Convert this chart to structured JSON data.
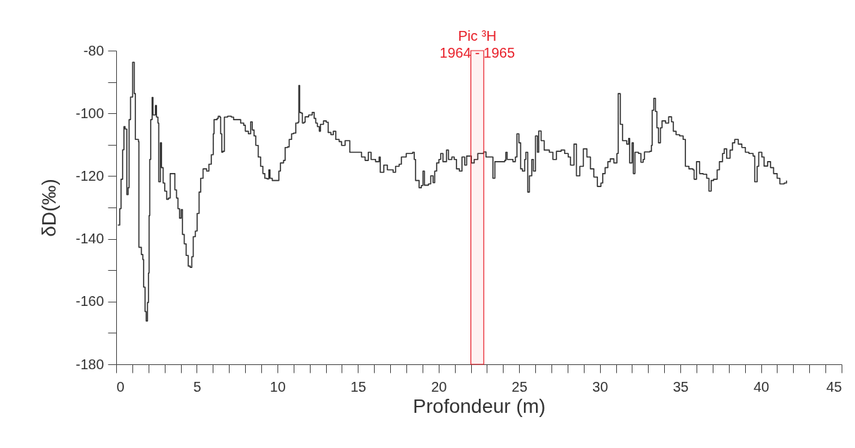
{
  "chart_data": {
    "type": "step",
    "xlabel": "Profondeur (m)",
    "ylabel": "δD(‰)",
    "xlim": [
      0,
      45
    ],
    "ylim": [
      -180,
      -80
    ],
    "xticks": [
      0,
      {
        "value": 1,
        "label": null
      },
      {
        "value": 2,
        "label": null
      },
      {
        "value": 3,
        "label": null
      },
      {
        "value": 4,
        "label": null
      },
      5,
      {
        "value": 6,
        "label": null
      },
      {
        "value": 7,
        "label": null
      },
      {
        "value": 8,
        "label": null
      },
      {
        "value": 9,
        "label": null
      },
      10,
      {
        "value": 11,
        "label": null
      },
      {
        "value": 12,
        "label": null
      },
      {
        "value": 13,
        "label": null
      },
      {
        "value": 14,
        "label": null
      },
      15,
      {
        "value": 16,
        "label": null
      },
      {
        "value": 17,
        "label": null
      },
      {
        "value": 18,
        "label": null
      },
      {
        "value": 19,
        "label": null
      },
      20,
      {
        "value": 21,
        "label": null
      },
      {
        "value": 22,
        "label": null
      },
      {
        "value": 23,
        "label": null
      },
      {
        "value": 24,
        "label": null
      },
      25,
      {
        "value": 26,
        "label": null
      },
      {
        "value": 27,
        "label": null
      },
      {
        "value": 28,
        "label": null
      },
      {
        "value": 29,
        "label": null
      },
      30,
      {
        "value": 31,
        "label": null
      },
      {
        "value": 32,
        "label": null
      },
      {
        "value": 33,
        "label": null
      },
      {
        "value": 34,
        "label": null
      },
      35,
      {
        "value": 36,
        "label": null
      },
      {
        "value": 37,
        "label": null
      },
      {
        "value": 38,
        "label": null
      },
      {
        "value": 39,
        "label": null
      },
      40,
      {
        "value": 41,
        "label": null
      },
      {
        "value": 42,
        "label": null
      },
      {
        "value": 43,
        "label": null
      },
      {
        "value": 44,
        "label": null
      },
      45
    ],
    "yticks": [
      -180,
      {
        "value": -170,
        "label": null
      },
      -160,
      {
        "value": -150,
        "label": null
      },
      -140,
      {
        "value": -130,
        "label": null
      },
      -120,
      {
        "value": -110,
        "label": null
      },
      -100,
      {
        "value": -90,
        "label": null
      },
      -80
    ],
    "grid": false,
    "bands": [
      {
        "axis": "x",
        "from": 22.0,
        "to": 22.8,
        "label": "Pic ³H\n1964 - 1965",
        "color": "#e8202a"
      }
    ],
    "series": [
      {
        "color": "#333333",
        "x": [
          0.1,
          0.22,
          0.3,
          0.4,
          0.48,
          0.55,
          0.66,
          0.74,
          0.8,
          0.89,
          1.02,
          1.12,
          1.19,
          1.38,
          1.41,
          1.56,
          1.65,
          1.7,
          1.79,
          1.86,
          1.94,
          2.0,
          2.04,
          2.08,
          2.14,
          2.23,
          2.28,
          2.43,
          2.5,
          2.59,
          2.64,
          2.74,
          2.81,
          2.91,
          3.01,
          3.13,
          3.24,
          3.35,
          3.57,
          3.64,
          3.74,
          3.83,
          3.93,
          4.03,
          4.11,
          4.22,
          4.34,
          4.47,
          4.59,
          4.69,
          4.78,
          4.91,
          5.02,
          5.14,
          5.24,
          5.39,
          5.61,
          5.75,
          5.9,
          6.02,
          6.07,
          6.26,
          6.33,
          6.43,
          6.48,
          6.55,
          6.62,
          6.71,
          6.91,
          7.14,
          7.28,
          7.5,
          7.72,
          7.91,
          8.01,
          8.2,
          8.34,
          8.44,
          8.55,
          8.66,
          8.81,
          8.96,
          9.1,
          9.22,
          9.36,
          9.47,
          9.54,
          9.68,
          9.97,
          10.09,
          10.19,
          10.38,
          10.48,
          10.63,
          10.73,
          10.88,
          11.0,
          11.14,
          11.28,
          11.33,
          11.38,
          11.46,
          11.55,
          11.65,
          11.72,
          11.94,
          12.16,
          12.28,
          12.38,
          12.48,
          12.6,
          12.67,
          12.86,
          13.03,
          13.15,
          13.32,
          13.47,
          13.62,
          13.83,
          13.98,
          14.2,
          14.49,
          14.93,
          15.22,
          15.44,
          15.64,
          15.81,
          16.09,
          16.31,
          16.38,
          16.6,
          16.82,
          17.04,
          17.18,
          17.33,
          17.55,
          17.69,
          17.99,
          18.39,
          18.49,
          18.57,
          18.79,
          18.93,
          19.03,
          19.12,
          19.37,
          19.51,
          19.66,
          19.76,
          19.88,
          20.02,
          20.13,
          20.27,
          20.49,
          20.61,
          20.82,
          20.97,
          21.11,
          21.29,
          21.45,
          21.62,
          21.74,
          21.89,
          22.03,
          22.21,
          22.43,
          22.79,
          22.94,
          23.23,
          23.37,
          23.49,
          24.1,
          24.17,
          24.25,
          24.61,
          24.76,
          24.86,
          24.98,
          25.09,
          25.2,
          25.34,
          25.41,
          25.53,
          25.63,
          25.78,
          25.88,
          26.01,
          26.13,
          26.21,
          26.36,
          26.55,
          26.87,
          27.09,
          27.31,
          27.6,
          27.82,
          28.04,
          28.18,
          28.4,
          28.55,
          28.76,
          28.98,
          29.2,
          29.42,
          29.63,
          29.85,
          30.07,
          30.18,
          30.33,
          30.5,
          30.65,
          30.87,
          31.06,
          31.14,
          31.27,
          31.41,
          31.67,
          31.79,
          31.85,
          32.0,
          32.08,
          32.18,
          32.4,
          32.55,
          32.69,
          32.77,
          33.1,
          33.2,
          33.25,
          33.35,
          33.45,
          33.54,
          33.64,
          33.76,
          33.86,
          34.08,
          34.27,
          34.45,
          34.56,
          34.73,
          34.95,
          35.17,
          35.31,
          35.53,
          35.78,
          35.85,
          36.0,
          36.19,
          36.41,
          36.63,
          36.77,
          36.91,
          37.06,
          37.28,
          37.42,
          37.61,
          37.72,
          37.87,
          38.08,
          38.23,
          38.37,
          38.59,
          38.81,
          39.03,
          39.25,
          39.51,
          39.61,
          39.76,
          39.86,
          40.05,
          40.19,
          40.41,
          40.59,
          40.78,
          41.0,
          41.17,
          41.44,
          41.58
        ],
        "values": [
          -135.6,
          -130.4,
          -121,
          -111.6,
          -104.2,
          -105,
          -125.9,
          -123.7,
          -102,
          -94.8,
          -83.7,
          -93.7,
          -108.3,
          -109,
          -142.7,
          -145,
          -146.6,
          -155.4,
          -163.2,
          -166.2,
          -160.3,
          -150.9,
          -132.6,
          -114.7,
          -102,
          -94.9,
          -100.5,
          -97.5,
          -101.2,
          -103.1,
          -121.8,
          -109.4,
          -117.3,
          -122.2,
          -124.8,
          -127.4,
          -127,
          -119.2,
          -119.2,
          -124.4,
          -127,
          -130.4,
          -133.4,
          -130.7,
          -138.6,
          -141.6,
          -145.3,
          -148.7,
          -149.1,
          -145.7,
          -139.3,
          -137.5,
          -131.9,
          -125.1,
          -120.7,
          -117.7,
          -118.4,
          -116.2,
          -113.2,
          -106.5,
          -102,
          -101.6,
          -100.9,
          -101.2,
          -106.5,
          -112.4,
          -112.1,
          -101.2,
          -100.9,
          -101.2,
          -102,
          -102,
          -103.1,
          -103.8,
          -105.7,
          -106.5,
          -102.7,
          -105.3,
          -107.2,
          -110.2,
          -113.9,
          -116.9,
          -119.2,
          -120.7,
          -120.9,
          -118,
          -120.7,
          -121.4,
          -121.4,
          -118.4,
          -115.8,
          -115,
          -110.9,
          -110.7,
          -108.3,
          -106.5,
          -106.3,
          -103.1,
          -102.8,
          -91.1,
          -99.7,
          -99.9,
          -103.1,
          -102.8,
          -101.1,
          -100.5,
          -99.7,
          -101.6,
          -103.1,
          -104.2,
          -105.7,
          -103.5,
          -102.4,
          -102.8,
          -106.1,
          -106.8,
          -105.7,
          -108.3,
          -109,
          -110.2,
          -108.7,
          -112.4,
          -112.4,
          -113.9,
          -115,
          -112.4,
          -114.7,
          -115.4,
          -113.9,
          -118.8,
          -116.5,
          -118,
          -118,
          -118.8,
          -116.9,
          -116.2,
          -113.9,
          -112.8,
          -112.4,
          -114.7,
          -121.4,
          -123.7,
          -123,
          -118.4,
          -122.9,
          -122.5,
          -119.9,
          -122.1,
          -118.4,
          -115.8,
          -114.7,
          -112.8,
          -115.4,
          -111.7,
          -114.7,
          -113.9,
          -114.7,
          -117.7,
          -118.4,
          -113.9,
          -116.5,
          -113.6,
          -113.6,
          -115.8,
          -114.7,
          -112.8,
          -112.3,
          -113.9,
          -113.9,
          -120.7,
          -115.4,
          -115,
          -112.4,
          -114.7,
          -115.4,
          -113.9,
          -106.5,
          -109.4,
          -117.7,
          -118.4,
          -114.7,
          -112.4,
          -125.1,
          -119.9,
          -114.7,
          -118.4,
          -107.2,
          -112.4,
          -105.6,
          -108.7,
          -111.7,
          -112.4,
          -114.7,
          -112.1,
          -111.7,
          -112.8,
          -113.9,
          -116.5,
          -109.8,
          -119.9,
          -116.9,
          -111.3,
          -113.9,
          -117.7,
          -120.3,
          -123.3,
          -122.2,
          -119.2,
          -117.3,
          -115.4,
          -114.5,
          -115.8,
          -112.8,
          -93.7,
          -103.5,
          -108.7,
          -109.8,
          -108,
          -115.8,
          -109.4,
          -119.2,
          -112.4,
          -112.8,
          -115.6,
          -114.7,
          -112.3,
          -112.1,
          -110.2,
          -99,
          -95.2,
          -99.4,
          -104.6,
          -109.4,
          -104.6,
          -102.4,
          -103.1,
          -101.1,
          -102.7,
          -105.7,
          -106.8,
          -107.2,
          -108.3,
          -116.9,
          -117.7,
          -118,
          -121,
          -115.4,
          -119.2,
          -119.4,
          -120.7,
          -124.8,
          -121.4,
          -121,
          -118,
          -115.4,
          -112.8,
          -111.3,
          -114.3,
          -111.7,
          -109.4,
          -108.3,
          -109.8,
          -110.9,
          -112.4,
          -112.8,
          -113.6,
          -121.8,
          -116.9,
          -112.4,
          -113.9,
          -116.8,
          -115.4,
          -117.3,
          -119.2,
          -120.7,
          -122.5,
          -122.2,
          -121.4
        ]
      }
    ]
  }
}
